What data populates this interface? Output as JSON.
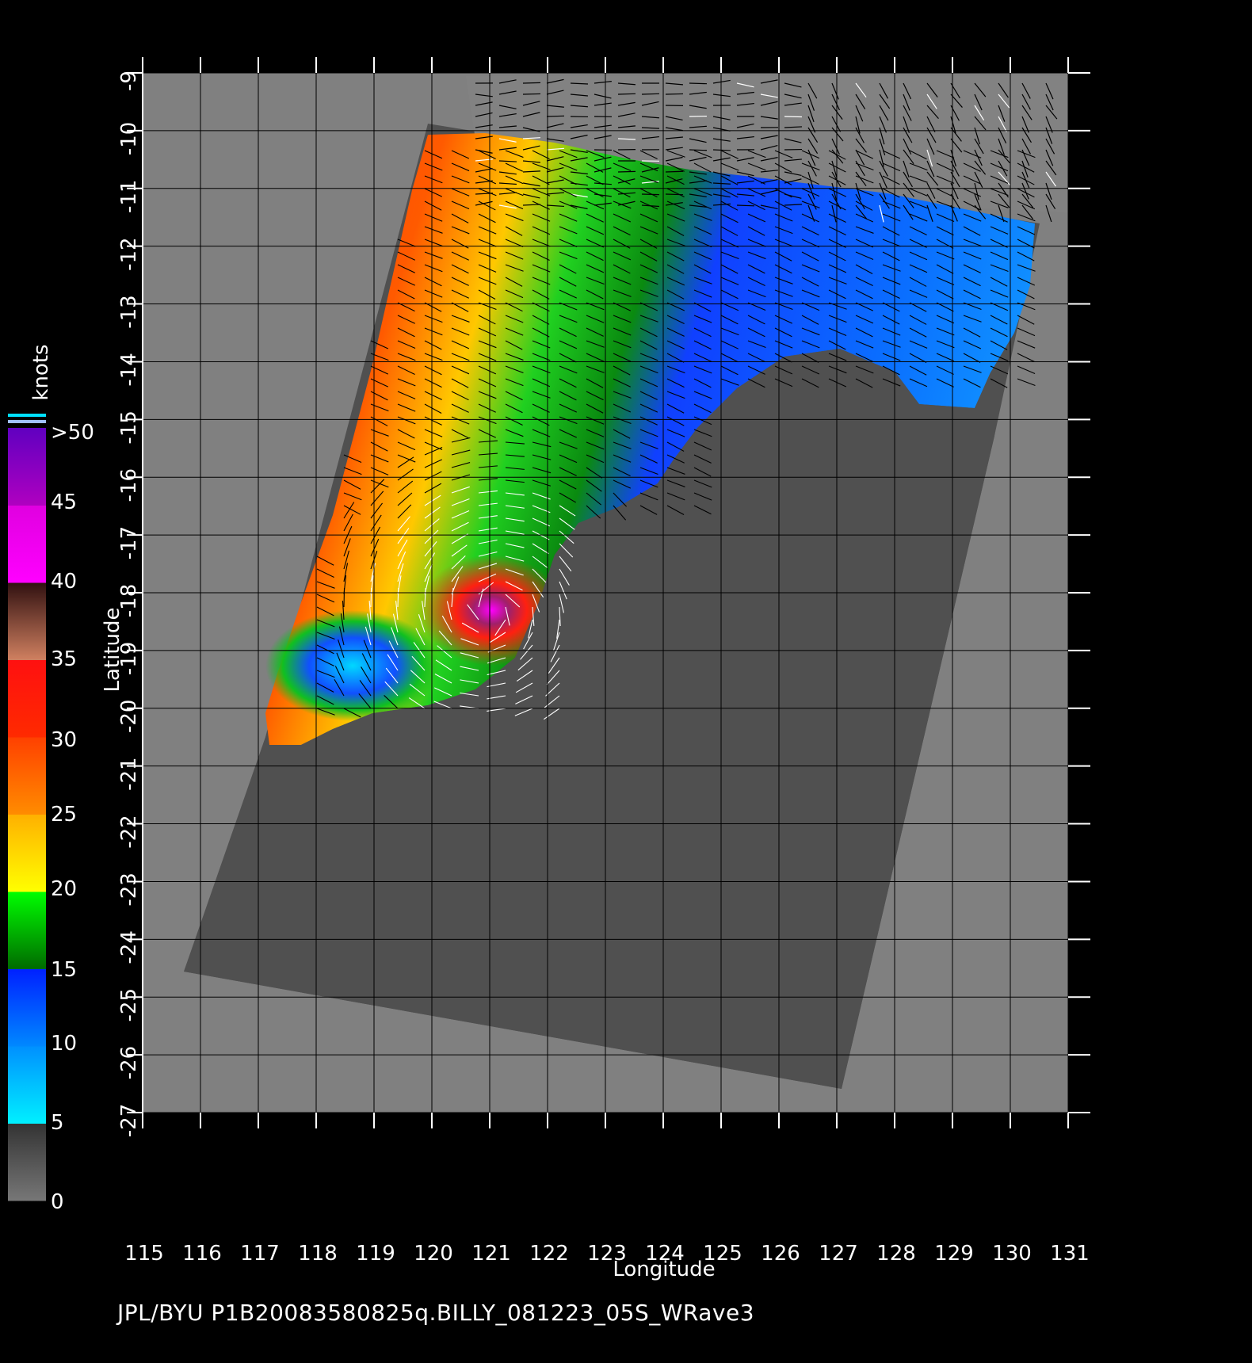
{
  "map": {
    "type": "scatterometer_wind_map",
    "lon_range": [
      115,
      131
    ],
    "lat_range": [
      -27,
      -9
    ],
    "lon_ticks": [
      "115",
      "116",
      "117",
      "118",
      "119",
      "120",
      "121",
      "122",
      "123",
      "124",
      "125",
      "126",
      "127",
      "128",
      "129",
      "130",
      "131"
    ],
    "lat_ticks": [
      "-9",
      "-10",
      "-11",
      "-12",
      "-13",
      "-14",
      "-15",
      "-16",
      "-17",
      "-18",
      "-19",
      "-20",
      "-21",
      "-22",
      "-23",
      "-24",
      "-25",
      "-26",
      "-27"
    ],
    "xlabel": "Longitude",
    "ylabel": "Latitude",
    "grid": true,
    "colors": {
      "background": "#000000",
      "outside_swath": "#808080",
      "land": "#505050",
      "grid": "#000000",
      "wind_barb_dark": "#000000",
      "wind_barb_light": "#ffffff"
    }
  },
  "colorbar": {
    "units": "knots",
    "labels": [
      ">50",
      "45",
      "40",
      "35",
      "30",
      "25",
      "20",
      "15",
      "10",
      "5",
      "0"
    ],
    "bands": [
      {
        "from": 0,
        "to": 5,
        "colors": [
          "#777777",
          "#333333"
        ]
      },
      {
        "from": 5,
        "to": 10,
        "colors": [
          "#00f0ff",
          "#0090ff"
        ]
      },
      {
        "from": 10,
        "to": 15,
        "colors": [
          "#0088ff",
          "#0020ff"
        ]
      },
      {
        "from": 15,
        "to": 20,
        "colors": [
          "#006a00",
          "#00ff00"
        ]
      },
      {
        "from": 20,
        "to": 25,
        "colors": [
          "#ffff00",
          "#ffb000"
        ]
      },
      {
        "from": 25,
        "to": 30,
        "colors": [
          "#ff8c00",
          "#ff4000"
        ]
      },
      {
        "from": 30,
        "to": 35,
        "colors": [
          "#ff2a00",
          "#ff1010"
        ]
      },
      {
        "from": 35,
        "to": 40,
        "colors": [
          "#d08060",
          "#301010"
        ]
      },
      {
        "from": 40,
        "to": 45,
        "colors": [
          "#ff00ff",
          "#e000e0"
        ]
      },
      {
        "from": 45,
        "to": 50,
        "colors": [
          "#b000c0",
          "#6000c0"
        ]
      }
    ]
  },
  "footer": {
    "text": "JPL/BYU  P1B20083580825q.BILLY_081223_05S_WRave3"
  }
}
